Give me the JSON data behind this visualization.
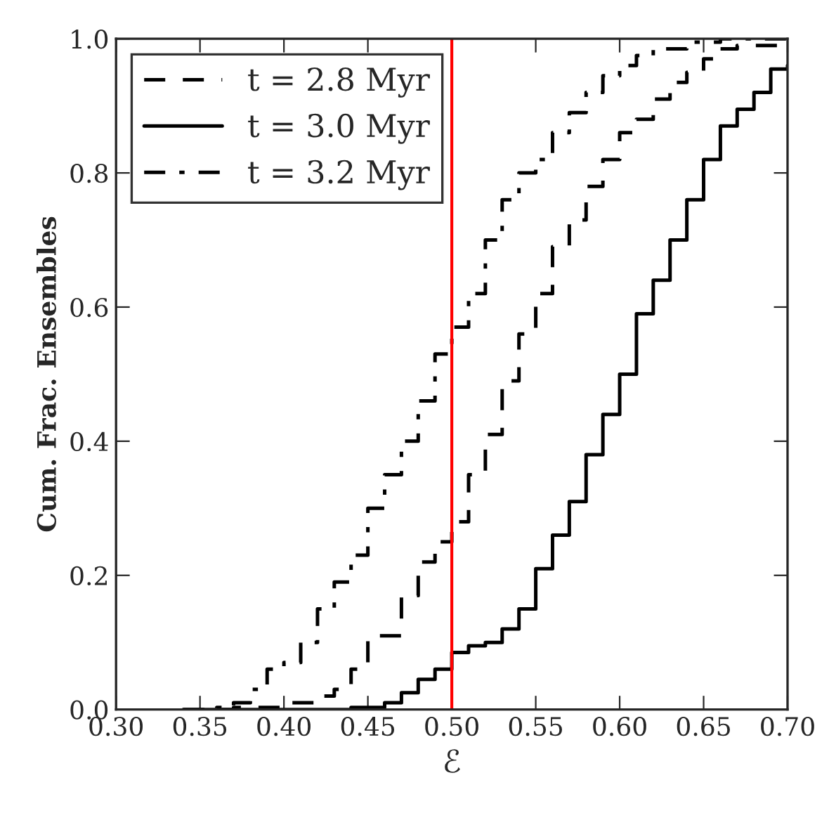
{
  "chart_data": {
    "type": "step",
    "xlabel": "ℰ",
    "ylabel": "Cum. Frac. Ensembles",
    "xlim": [
      0.3,
      0.7
    ],
    "xticks": [
      {
        "value": 0.3,
        "label": "0.30"
      },
      {
        "value": 0.35,
        "label": "0.35"
      },
      {
        "value": 0.4,
        "label": "0.40"
      },
      {
        "value": 0.45,
        "label": "0.45"
      },
      {
        "value": 0.5,
        "label": "0.50"
      },
      {
        "value": 0.55,
        "label": "0.55"
      },
      {
        "value": 0.6,
        "label": "0.60"
      },
      {
        "value": 0.65,
        "label": "0.65"
      },
      {
        "value": 0.7,
        "label": "0.70"
      }
    ],
    "ylim": [
      0,
      1
    ],
    "yticks": [
      {
        "value": 0,
        "label": "0.0"
      },
      {
        "value": 0.2,
        "label": "0.2"
      },
      {
        "value": 0.4,
        "label": "0.4"
      },
      {
        "value": 0.6,
        "label": "0.6"
      },
      {
        "value": 0.8,
        "label": "0.8"
      },
      {
        "value": 1,
        "label": "1.0"
      }
    ],
    "grid": false,
    "legend": "top left",
    "ref_lines": [
      {
        "axis": "x",
        "value": 0.5,
        "color": "#ff0000"
      }
    ],
    "series": [
      {
        "name": "t = 2.8 Myr",
        "color": "#000000",
        "line_style": "dashed",
        "x": [
          0.34,
          0.37,
          0.4,
          0.42,
          0.43,
          0.44,
          0.45,
          0.47,
          0.48,
          0.49,
          0.5,
          0.51,
          0.52,
          0.53,
          0.54,
          0.55,
          0.56,
          0.57,
          0.58,
          0.59,
          0.6,
          0.61,
          0.62,
          0.63,
          0.64,
          0.65,
          0.66,
          0.67,
          0.7
        ],
        "values": [
          0.0,
          0.003,
          0.01,
          0.02,
          0.03,
          0.06,
          0.11,
          0.17,
          0.22,
          0.25,
          0.28,
          0.35,
          0.41,
          0.49,
          0.56,
          0.62,
          0.69,
          0.73,
          0.78,
          0.82,
          0.86,
          0.88,
          0.91,
          0.935,
          0.95,
          0.97,
          0.985,
          0.99,
          1.0
        ]
      },
      {
        "name": "t = 3.0 Myr",
        "color": "#000000",
        "line_style": "solid",
        "x": [
          0.34,
          0.42,
          0.44,
          0.46,
          0.47,
          0.48,
          0.49,
          0.5,
          0.51,
          0.52,
          0.53,
          0.54,
          0.55,
          0.56,
          0.57,
          0.58,
          0.59,
          0.6,
          0.61,
          0.62,
          0.63,
          0.64,
          0.65,
          0.66,
          0.67,
          0.68,
          0.69,
          0.7
        ],
        "values": [
          0.0,
          0.0,
          0.003,
          0.01,
          0.025,
          0.045,
          0.06,
          0.085,
          0.095,
          0.1,
          0.12,
          0.15,
          0.21,
          0.26,
          0.31,
          0.38,
          0.44,
          0.5,
          0.59,
          0.64,
          0.7,
          0.76,
          0.82,
          0.87,
          0.895,
          0.92,
          0.955,
          0.96
        ]
      },
      {
        "name": "t = 3.2 Myr",
        "color": "#000000",
        "line_style": "dashdot",
        "x": [
          0.34,
          0.36,
          0.37,
          0.38,
          0.39,
          0.4,
          0.41,
          0.42,
          0.43,
          0.44,
          0.45,
          0.46,
          0.47,
          0.48,
          0.49,
          0.5,
          0.51,
          0.52,
          0.53,
          0.54,
          0.55,
          0.56,
          0.57,
          0.58,
          0.59,
          0.6,
          0.61,
          0.62,
          0.64,
          0.66,
          0.7
        ],
        "values": [
          0.0,
          0.003,
          0.01,
          0.03,
          0.06,
          0.07,
          0.1,
          0.15,
          0.19,
          0.23,
          0.3,
          0.35,
          0.4,
          0.46,
          0.53,
          0.57,
          0.62,
          0.7,
          0.76,
          0.8,
          0.82,
          0.86,
          0.89,
          0.92,
          0.945,
          0.96,
          0.975,
          0.985,
          0.995,
          1.0,
          1.0
        ]
      }
    ]
  }
}
